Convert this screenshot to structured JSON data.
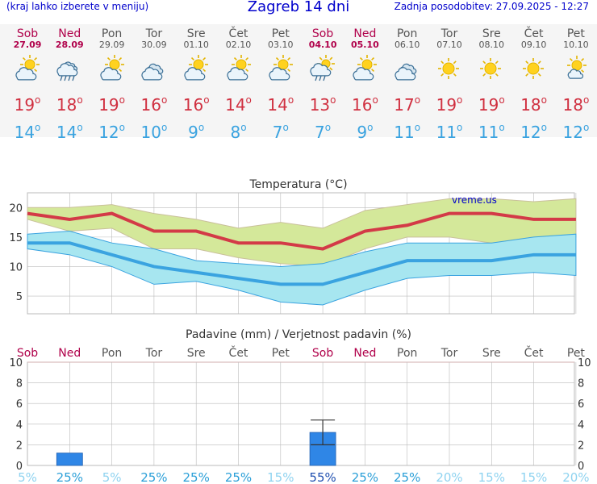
{
  "header": {
    "menu_hint": "(kraj lahko izberete v meniju)",
    "title": "Zagreb 14 dni",
    "updated": "Zadnja posodobitev: 27.09.2025 - 12:27"
  },
  "days": [
    {
      "name": "Sob",
      "date": "27.09",
      "weekend": true,
      "icon": "partly-cloudy-icon",
      "tmax": "19",
      "tmin": "14"
    },
    {
      "name": "Ned",
      "date": "28.09",
      "weekend": true,
      "icon": "rain-cloud-icon",
      "tmax": "18",
      "tmin": "14"
    },
    {
      "name": "Pon",
      "date": "29.09",
      "weekend": false,
      "icon": "partly-cloudy-icon",
      "tmax": "19",
      "tmin": "12"
    },
    {
      "name": "Tor",
      "date": "30.09",
      "weekend": false,
      "icon": "cloudy-icon",
      "tmax": "16",
      "tmin": "10"
    },
    {
      "name": "Sre",
      "date": "01.10",
      "weekend": false,
      "icon": "partly-cloudy-icon",
      "tmax": "16",
      "tmin": "9"
    },
    {
      "name": "Čet",
      "date": "02.10",
      "weekend": false,
      "icon": "partly-cloudy-icon",
      "tmax": "14",
      "tmin": "8"
    },
    {
      "name": "Pet",
      "date": "03.10",
      "weekend": false,
      "icon": "partly-cloudy-icon",
      "tmax": "14",
      "tmin": "7"
    },
    {
      "name": "Sob",
      "date": "04.10",
      "weekend": true,
      "icon": "sun-cloud-rain-icon",
      "tmax": "13",
      "tmin": "7"
    },
    {
      "name": "Ned",
      "date": "05.10",
      "weekend": true,
      "icon": "partly-cloudy-icon",
      "tmax": "16",
      "tmin": "9"
    },
    {
      "name": "Pon",
      "date": "06.10",
      "weekend": false,
      "icon": "cloudy-icon",
      "tmax": "17",
      "tmin": "11"
    },
    {
      "name": "Tor",
      "date": "07.10",
      "weekend": false,
      "icon": "sun-icon",
      "tmax": "19",
      "tmin": "11"
    },
    {
      "name": "Sre",
      "date": "08.10",
      "weekend": false,
      "icon": "sun-icon",
      "tmax": "19",
      "tmin": "11"
    },
    {
      "name": "Čet",
      "date": "09.10",
      "weekend": false,
      "icon": "sun-icon",
      "tmax": "18",
      "tmin": "12"
    },
    {
      "name": "Pet",
      "date": "10.10",
      "weekend": false,
      "icon": "mostly-sunny-icon",
      "tmax": "18",
      "tmin": "12"
    }
  ],
  "colors": {
    "title": "#0000cc",
    "weekend": "#b0004a",
    "max": "#d33a47",
    "min": "#3aa3e0",
    "max_band": "#d4e89a",
    "min_band": "#a7e6f0",
    "bar": "#2f86e6",
    "grid": "#bbbbbb"
  },
  "chart_data": [
    {
      "type": "line",
      "title": "Temperatura (°C)",
      "watermark": "vreme.us",
      "x": [
        "Sob",
        "Ned",
        "Pon",
        "Tor",
        "Sre",
        "Čet",
        "Pet",
        "Sob",
        "Ned",
        "Pon",
        "Tor",
        "Sre",
        "Čet",
        "Pet"
      ],
      "yticks": [
        5,
        10,
        15,
        20
      ],
      "ylim": [
        2,
        22.5
      ],
      "grid": true,
      "series": [
        {
          "values": [
            19,
            18,
            19,
            16,
            16,
            14,
            14,
            13,
            16,
            17,
            19,
            19,
            18,
            18
          ]
        },
        {
          "values": [
            14,
            14,
            12,
            10,
            9,
            8,
            7,
            7,
            9,
            11,
            11,
            11,
            12,
            12
          ]
        }
      ],
      "max_band_upper": [
        20,
        20,
        20.5,
        19,
        18,
        16.5,
        17.5,
        16.5,
        19.5,
        20.5,
        21.5,
        21.5,
        21,
        21.5
      ],
      "max_band_lower": [
        18,
        16,
        16.5,
        13,
        13,
        11.5,
        10.5,
        10,
        13,
        15,
        15,
        14,
        15,
        15
      ],
      "min_band_upper": [
        15.5,
        16,
        14,
        13,
        11,
        10.5,
        10,
        10.5,
        12.5,
        14,
        14,
        14,
        15,
        15.5
      ],
      "min_band_lower": [
        13,
        12,
        10,
        7,
        7.5,
        6,
        4,
        3.5,
        6,
        8,
        8.5,
        8.5,
        9,
        8.5
      ]
    },
    {
      "type": "bar",
      "title": "Padavine (mm) / Verjetnost padavin (%)",
      "categories": [
        "Sob",
        "Ned",
        "Pon",
        "Tor",
        "Sre",
        "Čet",
        "Pet",
        "Sob",
        "Ned",
        "Pon",
        "Tor",
        "Sre",
        "Čet",
        "Pet"
      ],
      "weekend": [
        true,
        true,
        false,
        false,
        false,
        false,
        false,
        true,
        true,
        false,
        false,
        false,
        false,
        false
      ],
      "yticks": [
        0,
        2,
        4,
        6,
        8,
        10
      ],
      "ylim": [
        0,
        10
      ],
      "bars": [
        {
          "index": 1,
          "value": 1.2
        },
        {
          "index": 7,
          "value": 3.2
        }
      ],
      "errors": [
        {
          "index": 7,
          "low": 2.0,
          "high": 4.4
        }
      ],
      "probabilities": [
        "5%",
        "25%",
        "5%",
        "25%",
        "25%",
        "25%",
        "15%",
        "55%",
        "25%",
        "25%",
        "20%",
        "15%",
        "15%",
        "20%"
      ],
      "probability_levels": [
        0,
        1,
        0,
        1,
        1,
        1,
        0,
        2,
        1,
        1,
        0,
        0,
        0,
        0
      ]
    }
  ]
}
